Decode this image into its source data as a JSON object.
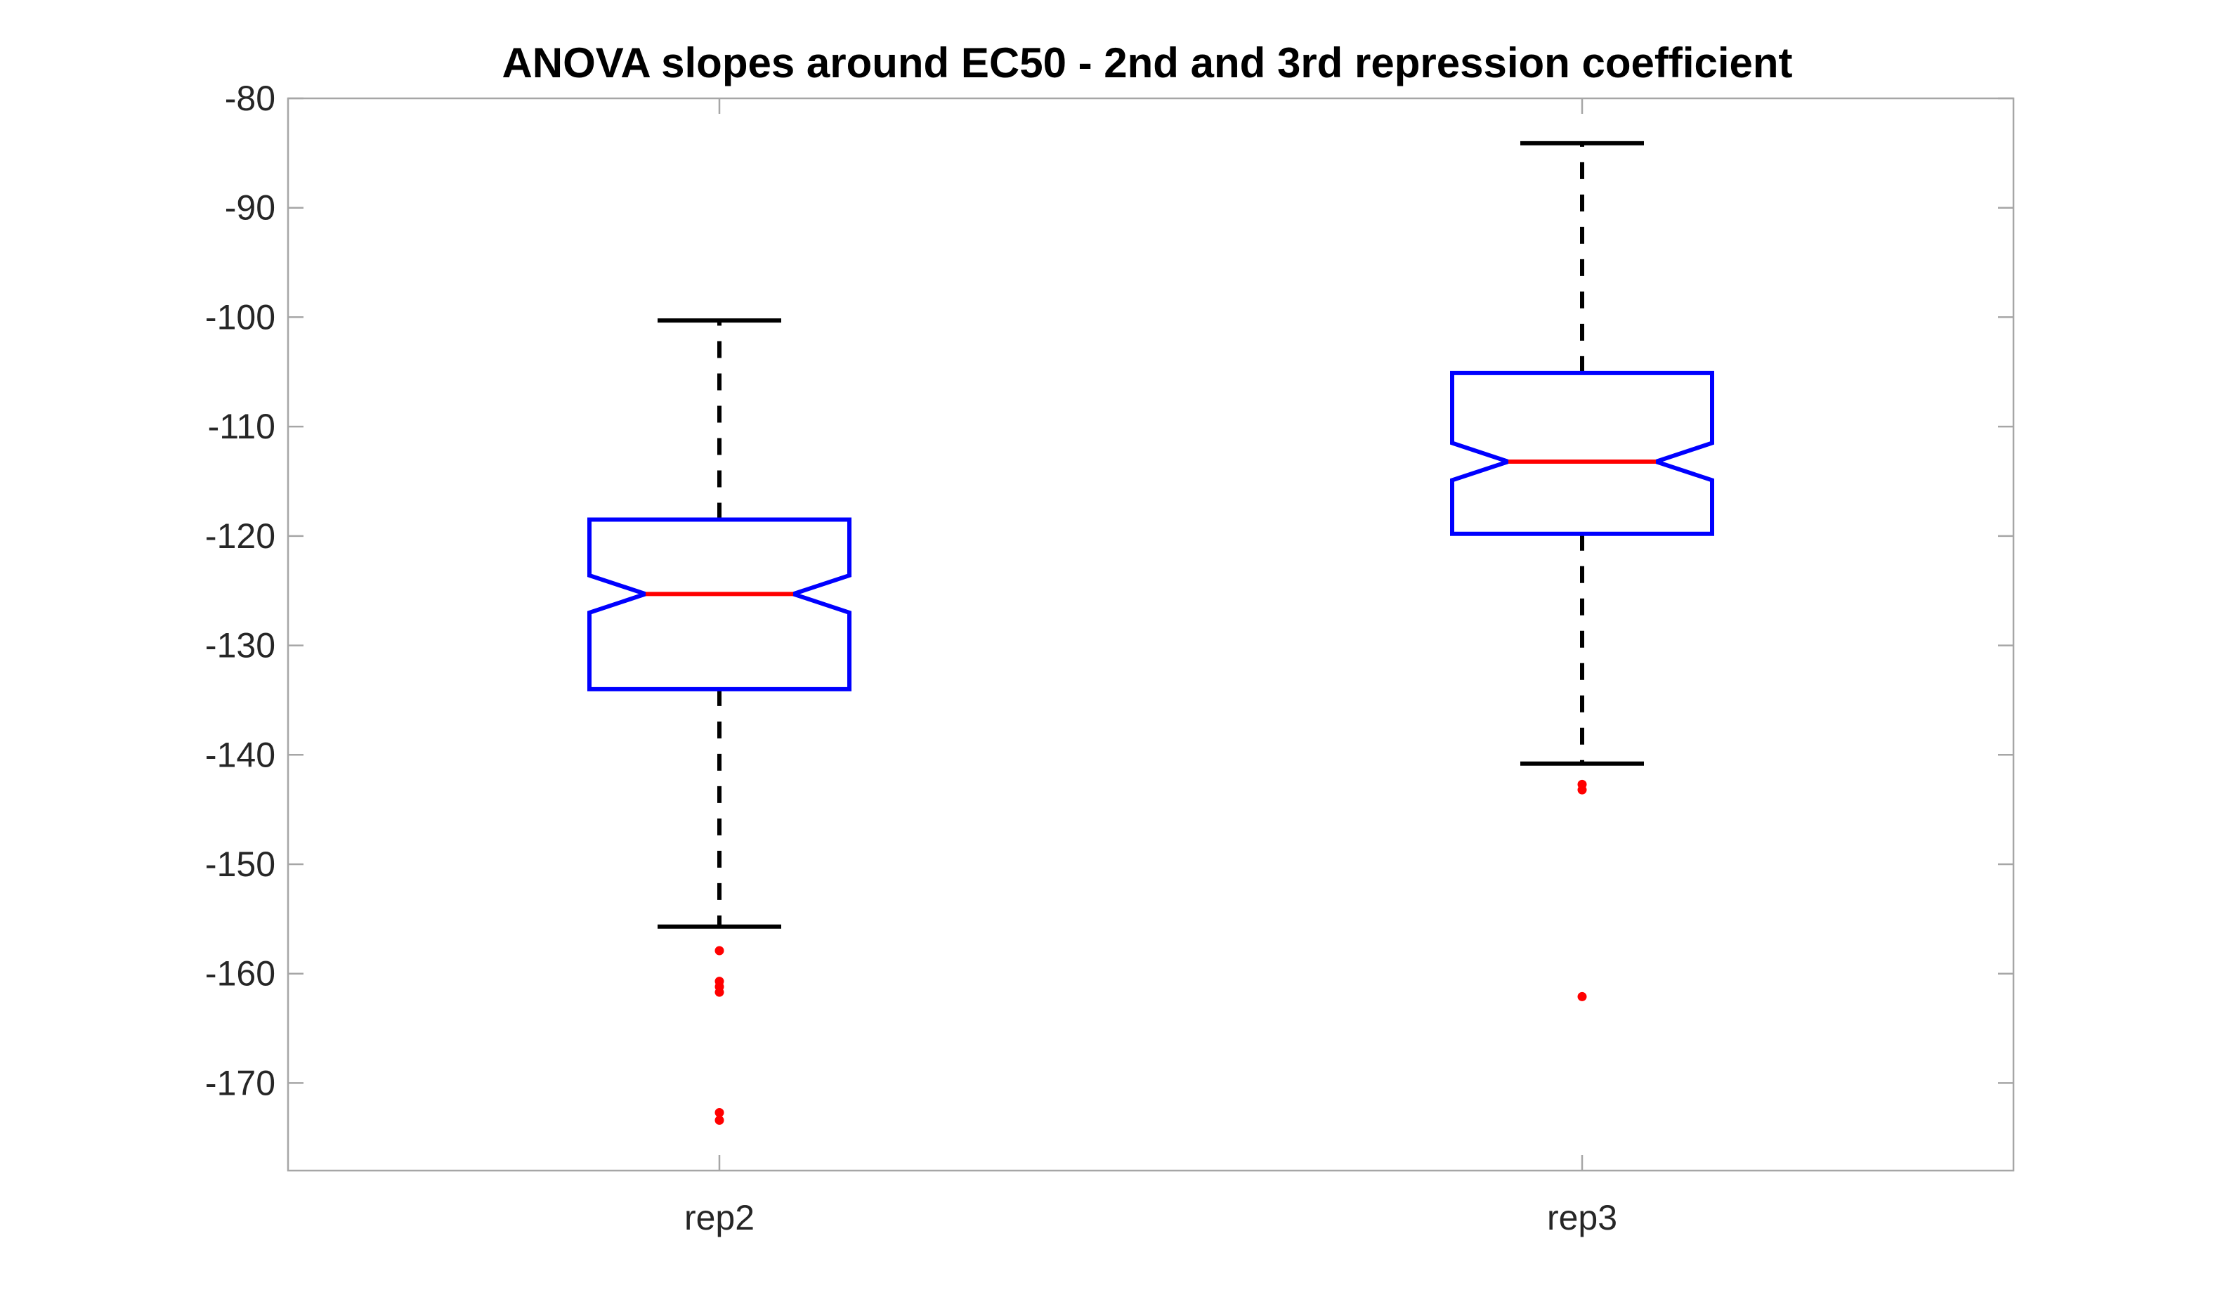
{
  "chart_data": {
    "type": "box",
    "title": "ANOVA slopes around EC50 - 2nd and 3rd repression coefficient",
    "xlabel": "",
    "ylabel": "",
    "categories": [
      "rep2",
      "rep3"
    ],
    "ylim": [
      -178,
      -80
    ],
    "yticks": [
      -80,
      -90,
      -100,
      -110,
      -120,
      -130,
      -140,
      -150,
      -160,
      -170
    ],
    "notched": true,
    "grid": false,
    "boxes": [
      {
        "category": "rep2",
        "whisker_low": -155.7,
        "q1": -134.0,
        "median": -125.3,
        "q3": -118.5,
        "whisker_high": -100.3,
        "notch_low": -127.0,
        "notch_high": -123.6,
        "outliers": [
          -157.9,
          -160.7,
          -161.2,
          -161.7,
          -172.7,
          -173.4
        ]
      },
      {
        "category": "rep3",
        "whisker_low": -140.8,
        "q1": -119.8,
        "median": -113.2,
        "q3": -105.1,
        "whisker_high": -84.1,
        "notch_low": -114.9,
        "notch_high": -111.5,
        "outliers": [
          -142.7,
          -143.2,
          -162.1
        ]
      }
    ],
    "colors": {
      "box": "#0000ff",
      "median": "#ff0000",
      "whisker": "#000000",
      "outlier": "#ff0000",
      "axis": "#a6a6a6"
    }
  }
}
